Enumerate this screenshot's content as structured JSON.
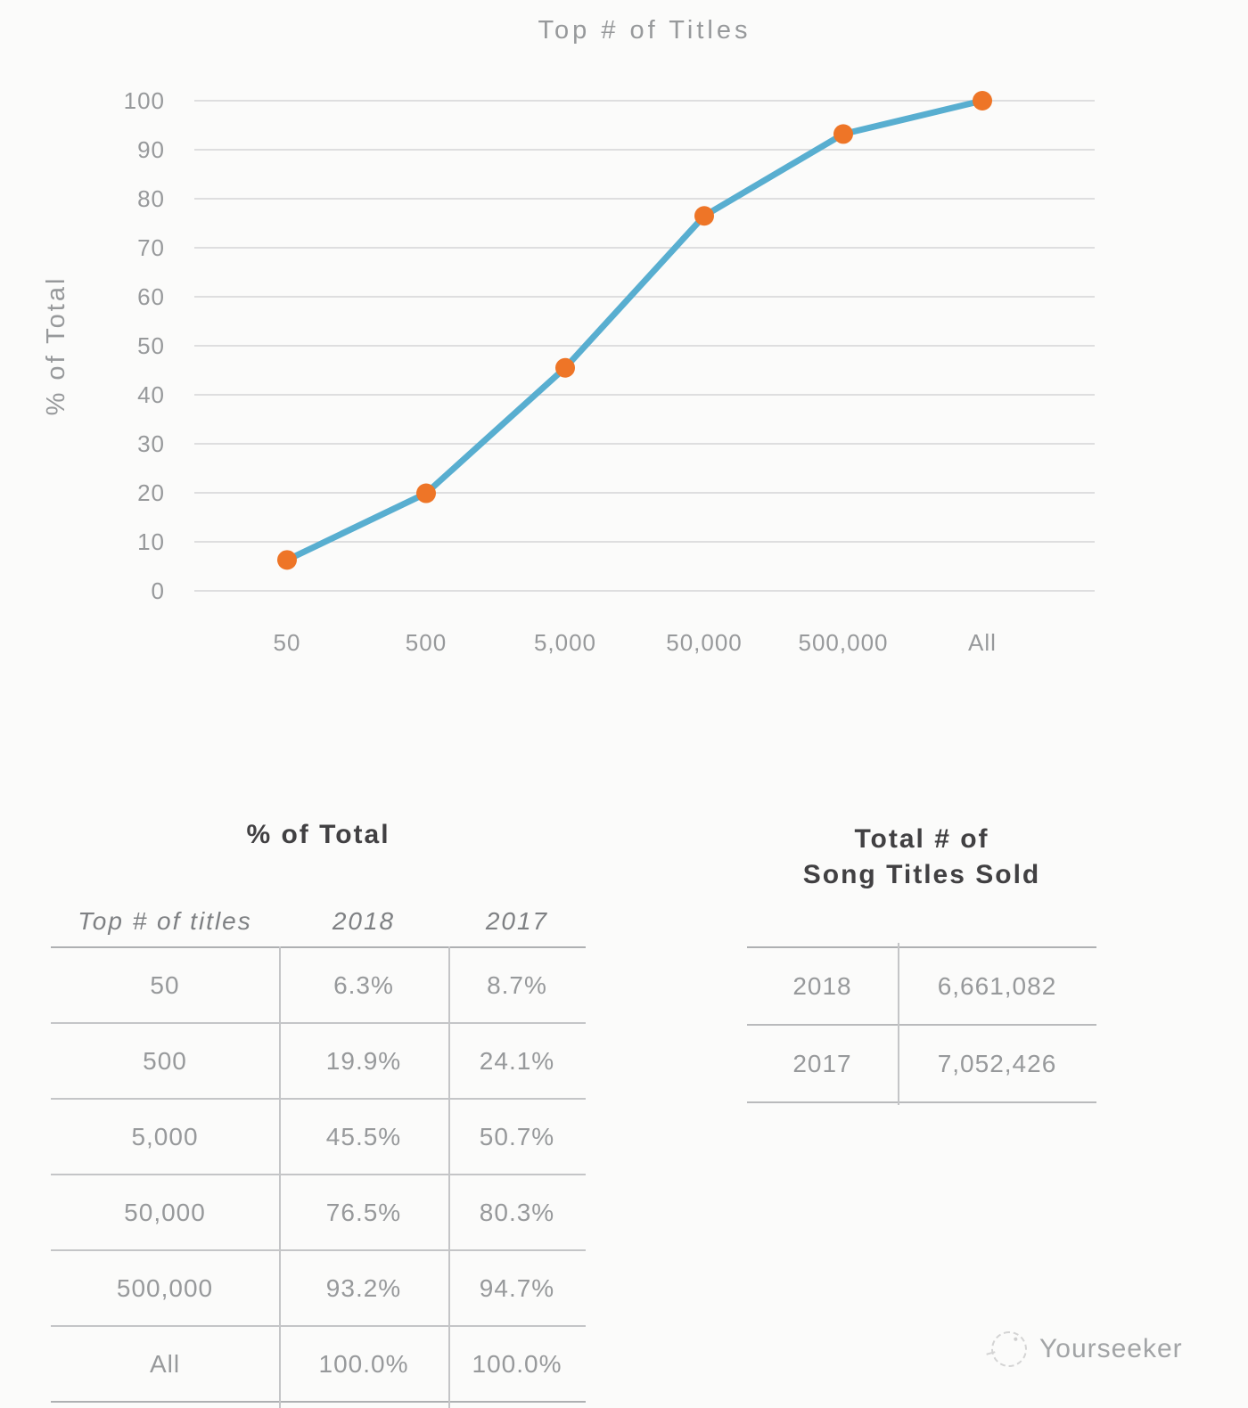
{
  "chart_data": {
    "type": "line",
    "title": "Top # of Titles",
    "ylabel": "% of Total",
    "xlabel": "",
    "categories": [
      "50",
      "500",
      "5,000",
      "50,000",
      "500,000",
      "All"
    ],
    "series": [
      {
        "name": "2018",
        "values": [
          6.3,
          19.9,
          45.5,
          76.5,
          93.2,
          100.0
        ]
      }
    ],
    "ylim": [
      0,
      100
    ],
    "yticks": [
      0,
      10,
      20,
      30,
      40,
      50,
      60,
      70,
      80,
      90,
      100
    ],
    "grid": true,
    "legend": "none",
    "line_color": "#58AED0",
    "marker_color": "#EE7527",
    "grid_color": "#D5D5D6",
    "tick_label_color": "#97999B"
  },
  "left_table": {
    "title": "% of Total",
    "columns": [
      "Top # of titles",
      "2018",
      "2017"
    ],
    "rows": [
      [
        "50",
        "6.3%",
        "8.7%"
      ],
      [
        "500",
        "19.9%",
        "24.1%"
      ],
      [
        "5,000",
        "45.5%",
        "50.7%"
      ],
      [
        "50,000",
        "76.5%",
        "80.3%"
      ],
      [
        "500,000",
        "93.2%",
        "94.7%"
      ],
      [
        "All",
        "100.0%",
        "100.0%"
      ]
    ]
  },
  "right_table": {
    "title_line1": "Total # of",
    "title_line2": "Song Titles Sold",
    "rows": [
      [
        "2018",
        "6,661,082"
      ],
      [
        "2017",
        "7,052,426"
      ]
    ]
  },
  "watermark": {
    "label": "Yourseeker"
  }
}
